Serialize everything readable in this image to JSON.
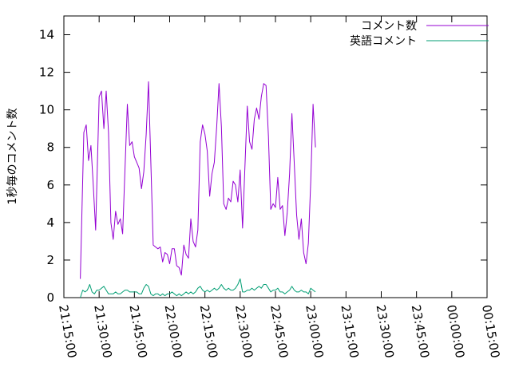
{
  "chart_data": {
    "type": "line",
    "ylabel": "1秒毎のコメント数",
    "xlabel": "",
    "title": "",
    "ylim": [
      0,
      15
    ],
    "xlim": [
      "21:15:00",
      "00:15:00"
    ],
    "y_ticks": [
      "0",
      "2",
      "4",
      "6",
      "8",
      "10",
      "12",
      "14"
    ],
    "x_ticks": [
      "21:15:00",
      "21:30:00",
      "21:45:00",
      "22:00:00",
      "22:15:00",
      "22:30:00",
      "22:45:00",
      "23:00:00",
      "23:15:00",
      "23:30:00",
      "23:45:00",
      "00:00:00",
      "00:15:00"
    ],
    "grid": false,
    "legend_position": "top-right",
    "series": [
      {
        "name": "コメント数",
        "color": "#9400d3",
        "points": [
          [
            "21:22:00",
            1.0
          ],
          [
            "21:23:30",
            8.8
          ],
          [
            "21:24:30",
            9.2
          ],
          [
            "21:25:30",
            7.3
          ],
          [
            "21:26:30",
            8.1
          ],
          [
            "21:27:30",
            6.0
          ],
          [
            "21:28:30",
            3.6
          ],
          [
            "21:30:00",
            10.7
          ],
          [
            "21:31:00",
            11.0
          ],
          [
            "21:32:00",
            9.0
          ],
          [
            "21:33:00",
            11.0
          ],
          [
            "21:34:00",
            8.8
          ],
          [
            "21:35:00",
            4.0
          ],
          [
            "21:36:00",
            3.1
          ],
          [
            "21:37:00",
            4.6
          ],
          [
            "21:38:00",
            3.9
          ],
          [
            "21:39:00",
            4.2
          ],
          [
            "21:40:00",
            3.4
          ],
          [
            "21:42:00",
            10.3
          ],
          [
            "21:43:00",
            8.1
          ],
          [
            "21:44:00",
            8.3
          ],
          [
            "21:45:00",
            7.5
          ],
          [
            "21:46:00",
            7.2
          ],
          [
            "21:47:00",
            6.9
          ],
          [
            "21:48:00",
            5.8
          ],
          [
            "21:49:00",
            6.7
          ],
          [
            "21:50:00",
            8.7
          ],
          [
            "21:51:00",
            11.5
          ],
          [
            "21:53:00",
            2.8
          ],
          [
            "21:54:00",
            2.7
          ],
          [
            "21:55:00",
            2.6
          ],
          [
            "21:56:00",
            2.7
          ],
          [
            "21:57:00",
            1.9
          ],
          [
            "21:58:00",
            2.4
          ],
          [
            "21:59:00",
            2.3
          ],
          [
            "22:00:00",
            1.8
          ],
          [
            "22:01:00",
            2.6
          ],
          [
            "22:02:00",
            2.6
          ],
          [
            "22:03:00",
            1.7
          ],
          [
            "22:04:00",
            1.6
          ],
          [
            "22:05:00",
            1.2
          ],
          [
            "22:06:00",
            2.8
          ],
          [
            "22:07:00",
            2.3
          ],
          [
            "22:08:00",
            2.1
          ],
          [
            "22:09:00",
            4.2
          ],
          [
            "22:10:00",
            3.0
          ],
          [
            "22:11:00",
            2.7
          ],
          [
            "22:12:00",
            3.6
          ],
          [
            "22:13:00",
            8.3
          ],
          [
            "22:14:00",
            9.2
          ],
          [
            "22:15:00",
            8.7
          ],
          [
            "22:16:00",
            7.8
          ],
          [
            "22:17:00",
            5.4
          ],
          [
            "22:18:00",
            6.6
          ],
          [
            "22:19:00",
            7.2
          ],
          [
            "22:20:00",
            9.1
          ],
          [
            "22:21:00",
            11.4
          ],
          [
            "22:22:00",
            9.1
          ],
          [
            "22:23:00",
            5.0
          ],
          [
            "22:24:00",
            4.7
          ],
          [
            "22:25:00",
            5.3
          ],
          [
            "22:26:00",
            5.1
          ],
          [
            "22:27:00",
            6.2
          ],
          [
            "22:28:00",
            6.0
          ],
          [
            "22:29:00",
            5.1
          ],
          [
            "22:30:00",
            6.8
          ],
          [
            "22:31:00",
            3.7
          ],
          [
            "22:33:00",
            10.2
          ],
          [
            "22:34:00",
            8.3
          ],
          [
            "22:35:00",
            7.9
          ],
          [
            "22:36:00",
            9.5
          ],
          [
            "22:37:00",
            10.1
          ],
          [
            "22:38:00",
            9.5
          ],
          [
            "22:39:00",
            10.7
          ],
          [
            "22:40:00",
            11.4
          ],
          [
            "22:41:00",
            11.3
          ],
          [
            "22:42:00",
            8.6
          ],
          [
            "22:43:00",
            4.7
          ],
          [
            "22:44:00",
            5.0
          ],
          [
            "22:45:00",
            4.8
          ],
          [
            "22:46:00",
            6.4
          ],
          [
            "22:47:00",
            4.7
          ],
          [
            "22:48:00",
            4.9
          ],
          [
            "22:49:00",
            3.3
          ],
          [
            "22:50:00",
            4.5
          ],
          [
            "22:51:00",
            6.6
          ],
          [
            "22:52:00",
            9.8
          ],
          [
            "22:53:00",
            7.1
          ],
          [
            "22:54:00",
            4.4
          ],
          [
            "22:55:00",
            3.1
          ],
          [
            "22:56:00",
            4.2
          ],
          [
            "22:57:00",
            2.4
          ],
          [
            "22:58:00",
            1.8
          ],
          [
            "22:59:00",
            2.9
          ],
          [
            "23:00:00",
            6.2
          ],
          [
            "23:01:00",
            10.3
          ],
          [
            "23:02:00",
            8.0
          ]
        ]
      },
      {
        "name": "英語コメント",
        "color": "#009e73",
        "points": [
          [
            "21:22:00",
            0.0
          ],
          [
            "21:23:00",
            0.4
          ],
          [
            "21:24:00",
            0.3
          ],
          [
            "21:25:00",
            0.4
          ],
          [
            "21:26:00",
            0.7
          ],
          [
            "21:27:00",
            0.3
          ],
          [
            "21:28:00",
            0.2
          ],
          [
            "21:29:00",
            0.4
          ],
          [
            "21:30:00",
            0.4
          ],
          [
            "21:31:00",
            0.5
          ],
          [
            "21:32:00",
            0.6
          ],
          [
            "21:33:00",
            0.4
          ],
          [
            "21:34:00",
            0.2
          ],
          [
            "21:35:00",
            0.2
          ],
          [
            "21:36:00",
            0.2
          ],
          [
            "21:37:00",
            0.3
          ],
          [
            "21:38:00",
            0.2
          ],
          [
            "21:39:00",
            0.2
          ],
          [
            "21:40:00",
            0.3
          ],
          [
            "21:41:00",
            0.4
          ],
          [
            "21:42:00",
            0.4
          ],
          [
            "21:43:00",
            0.3
          ],
          [
            "21:44:00",
            0.3
          ],
          [
            "21:45:00",
            0.3
          ],
          [
            "21:46:00",
            0.3
          ],
          [
            "21:47:00",
            0.2
          ],
          [
            "21:48:00",
            0.2
          ],
          [
            "21:49:00",
            0.5
          ],
          [
            "21:50:00",
            0.7
          ],
          [
            "21:51:00",
            0.6
          ],
          [
            "21:52:00",
            0.2
          ],
          [
            "21:53:00",
            0.1
          ],
          [
            "21:54:00",
            0.2
          ],
          [
            "21:55:00",
            0.2
          ],
          [
            "21:56:00",
            0.1
          ],
          [
            "21:57:00",
            0.2
          ],
          [
            "21:58:00",
            0.1
          ],
          [
            "21:59:00",
            0.2
          ],
          [
            "22:00:00",
            0.2
          ],
          [
            "22:01:00",
            0.3
          ],
          [
            "22:02:00",
            0.2
          ],
          [
            "22:03:00",
            0.1
          ],
          [
            "22:04:00",
            0.2
          ],
          [
            "22:05:00",
            0.1
          ],
          [
            "22:06:00",
            0.2
          ],
          [
            "22:07:00",
            0.3
          ],
          [
            "22:08:00",
            0.2
          ],
          [
            "22:09:00",
            0.3
          ],
          [
            "22:10:00",
            0.2
          ],
          [
            "22:11:00",
            0.3
          ],
          [
            "22:12:00",
            0.5
          ],
          [
            "22:13:00",
            0.6
          ],
          [
            "22:14:00",
            0.4
          ],
          [
            "22:15:00",
            0.3
          ],
          [
            "22:16:00",
            0.4
          ],
          [
            "22:17:00",
            0.3
          ],
          [
            "22:18:00",
            0.4
          ],
          [
            "22:19:00",
            0.5
          ],
          [
            "22:20:00",
            0.4
          ],
          [
            "22:21:00",
            0.5
          ],
          [
            "22:22:00",
            0.7
          ],
          [
            "22:23:00",
            0.5
          ],
          [
            "22:24:00",
            0.4
          ],
          [
            "22:25:00",
            0.5
          ],
          [
            "22:26:00",
            0.4
          ],
          [
            "22:27:00",
            0.4
          ],
          [
            "22:28:00",
            0.5
          ],
          [
            "22:29:00",
            0.7
          ],
          [
            "22:30:00",
            1.0
          ],
          [
            "22:31:00",
            0.3
          ],
          [
            "22:32:00",
            0.3
          ],
          [
            "22:33:00",
            0.4
          ],
          [
            "22:34:00",
            0.4
          ],
          [
            "22:35:00",
            0.5
          ],
          [
            "22:36:00",
            0.4
          ],
          [
            "22:37:00",
            0.5
          ],
          [
            "22:38:00",
            0.6
          ],
          [
            "22:39:00",
            0.5
          ],
          [
            "22:40:00",
            0.7
          ],
          [
            "22:41:00",
            0.7
          ],
          [
            "22:42:00",
            0.5
          ],
          [
            "22:43:00",
            0.3
          ],
          [
            "22:44:00",
            0.4
          ],
          [
            "22:45:00",
            0.4
          ],
          [
            "22:46:00",
            0.5
          ],
          [
            "22:47:00",
            0.3
          ],
          [
            "22:48:00",
            0.3
          ],
          [
            "22:49:00",
            0.2
          ],
          [
            "22:50:00",
            0.3
          ],
          [
            "22:51:00",
            0.4
          ],
          [
            "22:52:00",
            0.6
          ],
          [
            "22:53:00",
            0.4
          ],
          [
            "22:54:00",
            0.3
          ],
          [
            "22:55:00",
            0.3
          ],
          [
            "22:56:00",
            0.4
          ],
          [
            "22:57:00",
            0.3
          ],
          [
            "22:58:00",
            0.3
          ],
          [
            "22:59:00",
            0.2
          ],
          [
            "23:00:00",
            0.5
          ],
          [
            "23:01:00",
            0.4
          ],
          [
            "23:02:00",
            0.3
          ]
        ]
      }
    ]
  }
}
